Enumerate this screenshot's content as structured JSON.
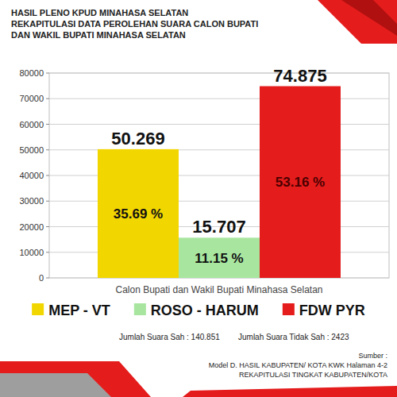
{
  "chart_data": {
    "type": "bar",
    "title": [
      "HASIL PLENO KPUD MINAHASA SELATAN",
      "REKAPITULASI DATA PEROLEHAN SUARA CALON BUPATI",
      "DAN WAKIL BUPATI MINAHASA SELATAN"
    ],
    "x_label": "Calon Bupati dan Wakil Bupati Minahasa Selatan",
    "categories": [
      "MEP - VT",
      "ROSO - HARUM",
      "FDW PYR"
    ],
    "values": [
      50269,
      15707,
      74875
    ],
    "value_labels": [
      "50.269",
      "15.707",
      "74.875"
    ],
    "percent_values": [
      35.69,
      11.15,
      53.16
    ],
    "percent_labels": [
      "35.69 %",
      "11.15 %",
      "53.16 %"
    ],
    "colors": [
      "#f2d600",
      "#a8e6a0",
      "#e51c1c"
    ],
    "ylim": [
      0,
      80000
    ],
    "yticks": [
      0,
      10000,
      20000,
      30000,
      40000,
      50000,
      60000,
      70000,
      80000
    ],
    "grid": true,
    "data_labels": true,
    "legend": "bottom",
    "tick_labels": "y",
    "footnotes": [
      "Jumlah Suara Sah : 140.851",
      "Jumlah Suara Tidak Sah : 2423"
    ],
    "source": [
      "Sumber :",
      "Model D. HASIL KABUPATEN/ KOTA KWK Halaman 4-2",
      "REKAPITULASI TINGKAT KABUPATEN/KOTA"
    ]
  }
}
